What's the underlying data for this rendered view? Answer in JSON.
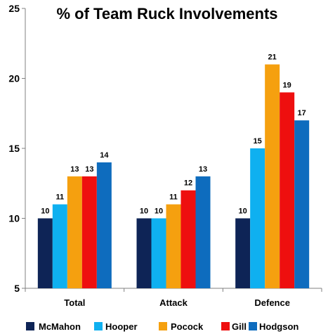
{
  "chart_data": {
    "type": "bar",
    "title": "% of Team Ruck Involvements",
    "categories": [
      "Total",
      "Attack",
      "Defence"
    ],
    "series": [
      {
        "name": "McMahon",
        "color": "#0e2456",
        "values": [
          10,
          10,
          10
        ]
      },
      {
        "name": "Hooper",
        "color": "#0fb0f0",
        "values": [
          11,
          10,
          15
        ]
      },
      {
        "name": "Pocock",
        "color": "#f5a00f",
        "values": [
          13,
          11,
          21
        ]
      },
      {
        "name": "Gill",
        "color": "#ee0f0f",
        "values": [
          13,
          12,
          19
        ]
      },
      {
        "name": "Hodgson",
        "color": "#0e6cbe",
        "values": [
          14,
          13,
          17
        ]
      }
    ],
    "ylim": [
      5,
      25
    ],
    "yticks": [
      5,
      10,
      15,
      20,
      25
    ],
    "grid": false,
    "legend_position": "bottom",
    "xlabel": "",
    "ylabel": ""
  }
}
